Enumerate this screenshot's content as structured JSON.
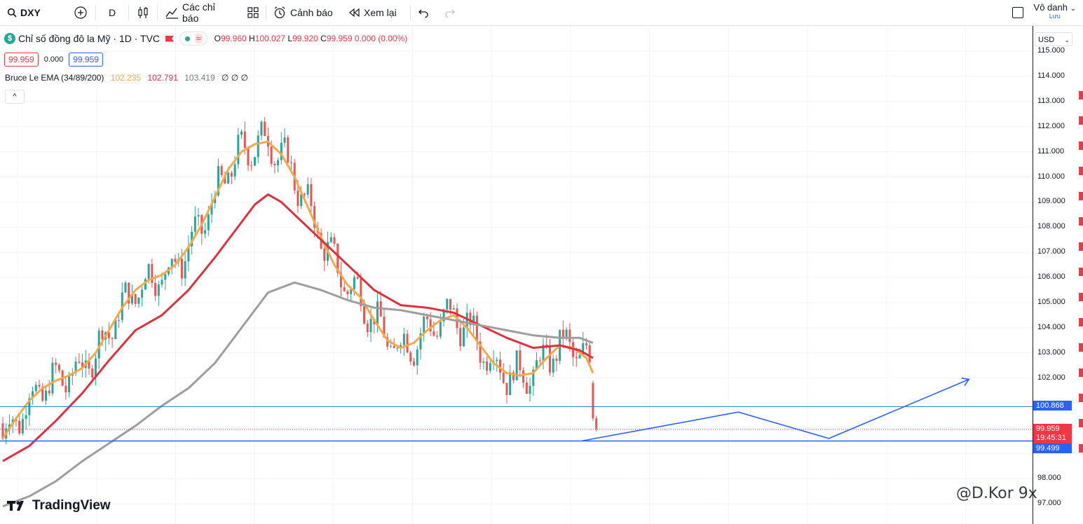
{
  "toolbar": {
    "symbol": "DXY",
    "interval": "D",
    "indicators_label": "Các chỉ báo",
    "alerts_label": "Cảnh báo",
    "replay_label": "Xem lại",
    "user_name": "Vô danh",
    "save_label": "Lưu"
  },
  "legend": {
    "title": "Chỉ số đồng đô la Mỹ · 1D · TVC",
    "open_label": "O",
    "open": "99.960",
    "high_label": "H",
    "high": "100.027",
    "low_label": "L",
    "low": "99.920",
    "close_label": "C",
    "close": "99.959",
    "change": "0.000 (0.00%)",
    "sell_price": "99.959",
    "spread": "0.000",
    "buy_price": "99.959"
  },
  "indicator": {
    "name": "Bruce Le EMA (34/89/200)",
    "ema34": "102.235",
    "ema89": "102.791",
    "ema200": "103.419",
    "extra": "∅ ∅ ∅",
    "collapse_label": "^"
  },
  "price_axis": {
    "currency": "USD",
    "ticks": [
      "115.000",
      "114.000",
      "113.000",
      "112.000",
      "111.000",
      "110.000",
      "109.000",
      "108.000",
      "107.000",
      "106.000",
      "105.000",
      "104.000",
      "103.000",
      "102.000",
      "98.000",
      "97.000"
    ],
    "tag_support": "100.868",
    "tag_last_price": "99.959",
    "tag_countdown": "19:45:31",
    "tag_lower_line": "99.499"
  },
  "colors": {
    "ema34": "#f7a94a",
    "ema89": "#e0303d",
    "ema200": "#9e9e9e",
    "up": "#26a69a",
    "down": "#ef5350",
    "projection": "#2962ff",
    "support_line": "#2962ff",
    "last_price": "#f23645"
  },
  "branding": {
    "logo_text": "TradingView",
    "watermark": "@D.Kor 9x"
  },
  "chart_data": {
    "type": "line",
    "ylim": [
      96.9,
      115.3
    ],
    "series": [
      {
        "name": "34",
        "points": [
          [
            0,
            99.6
          ],
          [
            4,
            100.4
          ],
          [
            8,
            101.1
          ],
          [
            12,
            101.6
          ],
          [
            16,
            101.9
          ],
          [
            20,
            102.1
          ],
          [
            24,
            102.4
          ],
          [
            28,
            103.0
          ],
          [
            32,
            103.9
          ],
          [
            36,
            104.8
          ],
          [
            40,
            105.5
          ],
          [
            44,
            105.9
          ],
          [
            48,
            106.1
          ],
          [
            52,
            106.5
          ],
          [
            56,
            107.2
          ],
          [
            60,
            108.1
          ],
          [
            64,
            109.2
          ],
          [
            68,
            110.3
          ],
          [
            72,
            111.0
          ],
          [
            76,
            111.3
          ],
          [
            80,
            111.4
          ],
          [
            84,
            110.9
          ],
          [
            88,
            110.0
          ],
          [
            92,
            108.8
          ],
          [
            96,
            107.6
          ],
          [
            100,
            106.5
          ],
          [
            104,
            105.7
          ],
          [
            108,
            105.2
          ],
          [
            112,
            104.3
          ],
          [
            116,
            103.5
          ],
          [
            120,
            103.2
          ],
          [
            124,
            103.4
          ],
          [
            128,
            103.9
          ],
          [
            132,
            104.3
          ],
          [
            136,
            104.5
          ],
          [
            140,
            104.0
          ],
          [
            144,
            103.3
          ],
          [
            148,
            102.6
          ],
          [
            152,
            102.2
          ],
          [
            156,
            102.1
          ],
          [
            160,
            102.2
          ],
          [
            164,
            102.8
          ],
          [
            168,
            103.3
          ],
          [
            172,
            103.2
          ],
          [
            176,
            102.8
          ],
          [
            178,
            102.2
          ]
        ]
      },
      {
        "name": "89",
        "points": [
          [
            0,
            98.7
          ],
          [
            8,
            99.3
          ],
          [
            16,
            100.3
          ],
          [
            24,
            101.4
          ],
          [
            32,
            102.7
          ],
          [
            40,
            103.9
          ],
          [
            48,
            104.5
          ],
          [
            56,
            105.5
          ],
          [
            64,
            106.8
          ],
          [
            72,
            108.2
          ],
          [
            76,
            108.9
          ],
          [
            80,
            109.3
          ],
          [
            84,
            109.0
          ],
          [
            88,
            108.5
          ],
          [
            96,
            107.5
          ],
          [
            104,
            106.5
          ],
          [
            112,
            105.5
          ],
          [
            120,
            104.9
          ],
          [
            128,
            104.8
          ],
          [
            136,
            104.6
          ],
          [
            144,
            104.1
          ],
          [
            152,
            103.6
          ],
          [
            160,
            103.2
          ],
          [
            168,
            103.3
          ],
          [
            174,
            103.1
          ],
          [
            178,
            102.8
          ]
        ]
      },
      {
        "name": "200",
        "points": [
          [
            0,
            96.9
          ],
          [
            8,
            97.3
          ],
          [
            16,
            97.9
          ],
          [
            24,
            98.7
          ],
          [
            32,
            99.4
          ],
          [
            40,
            100.1
          ],
          [
            48,
            100.9
          ],
          [
            56,
            101.6
          ],
          [
            64,
            102.6
          ],
          [
            72,
            104.0
          ],
          [
            80,
            105.4
          ],
          [
            88,
            105.8
          ],
          [
            96,
            105.5
          ],
          [
            104,
            105.1
          ],
          [
            112,
            104.8
          ],
          [
            120,
            104.7
          ],
          [
            128,
            104.5
          ],
          [
            136,
            104.3
          ],
          [
            144,
            104.1
          ],
          [
            152,
            103.9
          ],
          [
            160,
            103.7
          ],
          [
            168,
            103.6
          ],
          [
            174,
            103.6
          ],
          [
            178,
            103.4
          ]
        ]
      }
    ],
    "levels": [
      100.868,
      99.959,
      99.499
    ],
    "projection": [
      [
        0,
        99.5
      ],
      [
        19,
        100.65
      ],
      [
        30,
        99.6
      ],
      [
        47,
        101.95
      ]
    ]
  }
}
